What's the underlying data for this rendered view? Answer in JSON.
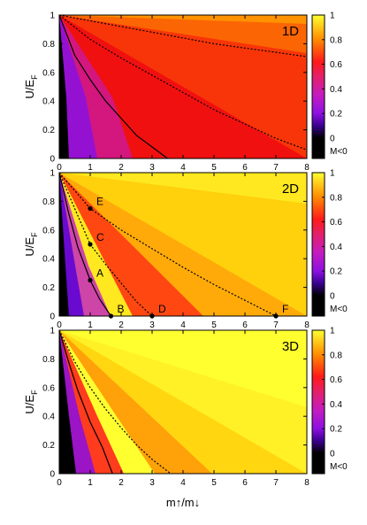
{
  "chart_data": [
    {
      "type": "heatmap",
      "panel_label": "1D",
      "ylabel_main": "U/E",
      "ylabel_sub": "F",
      "xlim": [
        0,
        8
      ],
      "ylim": [
        0,
        1
      ],
      "x_ticks": [
        "0",
        "1",
        "2",
        "3",
        "4",
        "5",
        "6",
        "7",
        "8"
      ],
      "y_ticks": [
        "0",
        "0.2",
        "0.4",
        "0.6",
        "0.8",
        "1"
      ],
      "colorbar": {
        "ticks": [
          "0",
          "0.2",
          "0.4",
          "0.6",
          "0.8",
          "1"
        ],
        "below_label": "M<0"
      },
      "curves": [
        {
          "style": "solid",
          "points": [
            [
              0,
              1
            ],
            [
              0.5,
              0.72
            ],
            [
              1,
              0.55
            ],
            [
              1.5,
              0.4
            ],
            [
              2,
              0.28
            ],
            [
              2.5,
              0.16
            ],
            [
              3,
              0.08
            ],
            [
              3.5,
              0.0
            ]
          ]
        },
        {
          "style": "dashed",
          "points": [
            [
              0,
              1
            ],
            [
              1,
              0.83
            ],
            [
              2,
              0.7
            ],
            [
              3,
              0.58
            ],
            [
              4,
              0.46
            ],
            [
              5,
              0.34
            ],
            [
              6,
              0.24
            ],
            [
              7,
              0.14
            ],
            [
              8,
              0.06
            ]
          ]
        },
        {
          "style": "dashed",
          "points": [
            [
              0,
              1
            ],
            [
              1,
              0.96
            ],
            [
              2,
              0.92
            ],
            [
              3,
              0.88
            ],
            [
              4,
              0.84
            ],
            [
              5,
              0.8
            ],
            [
              6,
              0.77
            ],
            [
              7,
              0.74
            ],
            [
              8,
              0.71
            ]
          ]
        }
      ],
      "points": []
    },
    {
      "type": "heatmap",
      "panel_label": "2D",
      "ylabel_main": "U/E",
      "ylabel_sub": "F",
      "xlim": [
        0,
        8
      ],
      "ylim": [
        0,
        1
      ],
      "x_ticks": [
        "0",
        "1",
        "2",
        "3",
        "4",
        "5",
        "6",
        "7",
        "8"
      ],
      "y_ticks": [
        "0",
        "0.2",
        "0.4",
        "0.6",
        "0.8",
        "1"
      ],
      "colorbar": {
        "ticks": [
          "0",
          "0.2",
          "0.4",
          "0.6",
          "0.8",
          "1"
        ],
        "below_label": "M<0"
      },
      "curves": [
        {
          "style": "solid",
          "points": [
            [
              0,
              1
            ],
            [
              0.3,
              0.72
            ],
            [
              0.6,
              0.48
            ],
            [
              1,
              0.25
            ],
            [
              1.3,
              0.12
            ],
            [
              1.67,
              0.0
            ]
          ]
        },
        {
          "style": "dashed",
          "points": [
            [
              0,
              1
            ],
            [
              0.5,
              0.75
            ],
            [
              1,
              0.5
            ],
            [
              1.5,
              0.36
            ],
            [
              2,
              0.23
            ],
            [
              2.5,
              0.1
            ],
            [
              3,
              0.0
            ]
          ]
        },
        {
          "style": "dashed",
          "points": [
            [
              0,
              1
            ],
            [
              1,
              0.75
            ],
            [
              2,
              0.6
            ],
            [
              3,
              0.47
            ],
            [
              4,
              0.34
            ],
            [
              5,
              0.22
            ],
            [
              6,
              0.11
            ],
            [
              7,
              0.0
            ]
          ]
        }
      ],
      "points": [
        {
          "label": "E",
          "x": 1,
          "y": 0.75
        },
        {
          "label": "C",
          "x": 1,
          "y": 0.5
        },
        {
          "label": "A",
          "x": 1,
          "y": 0.25
        },
        {
          "label": "B",
          "x": 1.67,
          "y": 0
        },
        {
          "label": "D",
          "x": 3,
          "y": 0
        },
        {
          "label": "F",
          "x": 7,
          "y": 0
        }
      ]
    },
    {
      "type": "heatmap",
      "panel_label": "3D",
      "ylabel_main": "U/E",
      "ylabel_sub": "F",
      "xlabel": "m↑/m↓",
      "xlim": [
        0,
        8
      ],
      "ylim": [
        0,
        1
      ],
      "x_ticks": [
        "0",
        "1",
        "2",
        "3",
        "4",
        "5",
        "6",
        "7",
        "8"
      ],
      "y_ticks": [
        "0",
        "0.2",
        "0.4",
        "0.6",
        "0.8",
        "1"
      ],
      "colorbar": {
        "ticks": [
          "0",
          "0.2",
          "0.4",
          "0.6",
          "0.8",
          "1"
        ],
        "below_label": "M<0"
      },
      "curves": [
        {
          "style": "solid",
          "points": [
            [
              0,
              1
            ],
            [
              0.3,
              0.78
            ],
            [
              0.6,
              0.58
            ],
            [
              1,
              0.36
            ],
            [
              1.4,
              0.18
            ],
            [
              1.72,
              0.0
            ]
          ]
        },
        {
          "style": "dashed",
          "points": [
            [
              0,
              1
            ],
            [
              0.5,
              0.78
            ],
            [
              1,
              0.6
            ],
            [
              1.5,
              0.45
            ],
            [
              2,
              0.32
            ],
            [
              2.5,
              0.2
            ],
            [
              3,
              0.1
            ],
            [
              3.6,
              0.0
            ]
          ]
        }
      ],
      "points": []
    }
  ]
}
